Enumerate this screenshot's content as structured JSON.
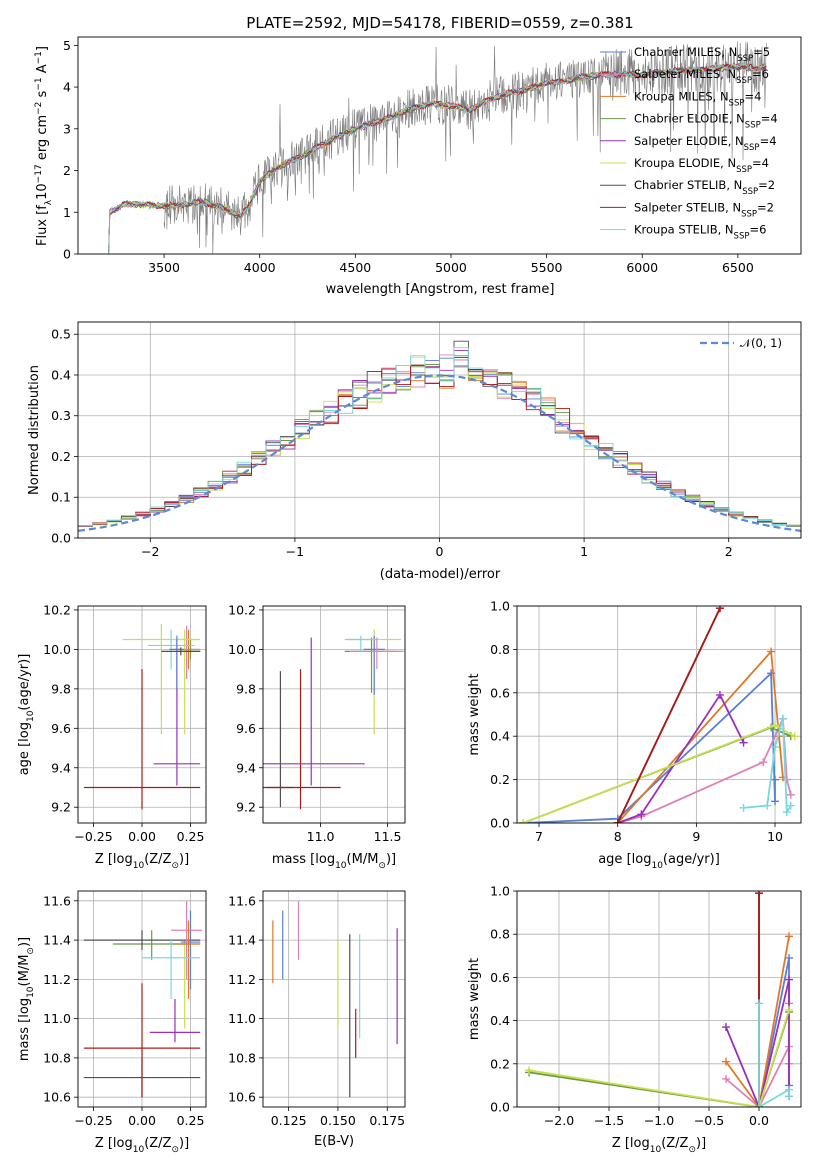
{
  "title": "PLATE=2592, MJD=54178, FIBERID=0559, z=0.381",
  "legend": [
    {
      "label": "Chabrier MILES, N",
      "sub": "SSP",
      "suffix": "=5",
      "color": "#5a7fd8"
    },
    {
      "label": "Salpeter MILES, N",
      "sub": "SSP",
      "suffix": "=6",
      "color": "#e080b8"
    },
    {
      "label": "Kroupa MILES, N",
      "sub": "SSP",
      "suffix": "=4",
      "color": "#e07828"
    },
    {
      "label": "Chabrier ELODIE, N",
      "sub": "SSP",
      "suffix": "=4",
      "color": "#6a9a4a"
    },
    {
      "label": "Salpeter ELODIE, N",
      "sub": "SSP",
      "suffix": "=4",
      "color": "#9a30b8"
    },
    {
      "label": "Kroupa ELODIE, N",
      "sub": "SSP",
      "suffix": "=4",
      "color": "#c8e050"
    },
    {
      "label": "Chabrier STELIB, N",
      "sub": "SSP",
      "suffix": "=2",
      "color": "#505050"
    },
    {
      "label": "Salpeter STELIB, N",
      "sub": "SSP",
      "suffix": "=2",
      "color": "#b01818"
    },
    {
      "label": "Kroupa STELIB, N",
      "sub": "SSP",
      "suffix": "=6",
      "color": "#78d8e0"
    }
  ],
  "hist_legend": "𝒩(0, 1)",
  "chart_data": [
    {
      "type": "line",
      "panel": "spectrum",
      "xlabel": "wavelength [Angstrom, rest frame]",
      "ylabel": "Flux [f",
      "ylabel_sub": "λ",
      "ylabel_rest": "10",
      "ylabel_exp1": "−17",
      "ylabel_mid": " erg cm",
      "ylabel_exp2": "−2",
      "ylabel_mid2": " s",
      "ylabel_exp3": "−1",
      "ylabel_mid3": " A",
      "ylabel_exp4": "−1",
      "ylabel_end": "]",
      "xlim": [
        3050,
        6830
      ],
      "ylim": [
        0,
        5.2
      ],
      "xticks": [
        "3500",
        "4000",
        "4500",
        "5000",
        "5500",
        "6000",
        "6500"
      ],
      "xtick_values": [
        3500,
        4000,
        4500,
        5000,
        5500,
        6000,
        6500
      ],
      "yticks": [
        "0",
        "1",
        "2",
        "3",
        "4",
        "5"
      ],
      "ytick_values": [
        0,
        1,
        2,
        3,
        4,
        5
      ],
      "continuum": [
        [
          3210,
          0
        ],
        [
          3215,
          1.0
        ],
        [
          3300,
          1.2
        ],
        [
          3400,
          1.18
        ],
        [
          3500,
          1.15
        ],
        [
          3600,
          1.18
        ],
        [
          3700,
          1.25
        ],
        [
          3800,
          1.12
        ],
        [
          3900,
          0.9
        ],
        [
          3950,
          1.2
        ],
        [
          4000,
          1.75
        ],
        [
          4100,
          2.1
        ],
        [
          4200,
          2.3
        ],
        [
          4300,
          2.55
        ],
        [
          4400,
          2.8
        ],
        [
          4500,
          3.0
        ],
        [
          4600,
          3.15
        ],
        [
          4700,
          3.3
        ],
        [
          4800,
          3.5
        ],
        [
          4900,
          3.6
        ],
        [
          5000,
          3.55
        ],
        [
          5100,
          3.45
        ],
        [
          5200,
          3.7
        ],
        [
          5300,
          3.85
        ],
        [
          5400,
          3.95
        ],
        [
          5500,
          4.1
        ],
        [
          5600,
          4.15
        ],
        [
          5700,
          4.25
        ],
        [
          5800,
          4.3
        ],
        [
          5900,
          4.3
        ],
        [
          6000,
          4.3
        ],
        [
          6100,
          4.35
        ],
        [
          6200,
          4.4
        ],
        [
          6300,
          4.4
        ],
        [
          6400,
          4.45
        ],
        [
          6500,
          4.5
        ],
        [
          6600,
          4.45
        ],
        [
          6650,
          4.5
        ]
      ]
    },
    {
      "type": "bar",
      "panel": "residual-histogram",
      "xlabel": "(data-model)/error",
      "ylabel": "Normed distribution",
      "xlim": [
        -2.5,
        2.5
      ],
      "ylim": [
        0,
        0.53
      ],
      "xticks": [
        "−2",
        "−1",
        "0",
        "1",
        "2"
      ],
      "xtick_values": [
        -2,
        -1,
        0,
        1,
        2
      ],
      "yticks": [
        "0.0",
        "0.1",
        "0.2",
        "0.3",
        "0.4",
        "0.5"
      ],
      "ytick_values": [
        0,
        0.1,
        0.2,
        0.3,
        0.4,
        0.5
      ],
      "bin_width": 0.1,
      "bin_start": -2.5,
      "reference_curve": "standard normal"
    },
    {
      "type": "scatter",
      "panel": "age-vs-Z",
      "xlabel": "Z [log",
      "xlabel_sub": "10",
      "xlabel_rest": "(Z/Z",
      "xlabel_sub2": "⊙",
      "xlabel_end": ")]",
      "ylabel": "age  [log",
      "ylabel_sub": "10",
      "ylabel_rest": "(age/yr)]",
      "xlim": [
        -0.33,
        0.33
      ],
      "ylim": [
        9.12,
        10.22
      ],
      "xticks": [
        "−0.25",
        "0.00",
        "0.25"
      ],
      "xtick_values": [
        -0.25,
        0,
        0.25
      ],
      "yticks": [
        "9.2",
        "9.4",
        "9.6",
        "9.8",
        "10.0",
        "10.2"
      ],
      "ytick_values": [
        9.2,
        9.4,
        9.6,
        9.8,
        10.0,
        10.2
      ],
      "points": [
        {
          "x": 0.18,
          "y": 9.42,
          "xerr": 0.12,
          "ylo": 9.31,
          "yhi": 10.05,
          "series": 4
        },
        {
          "x": 0.0,
          "y": 9.3,
          "xerr": 0.3,
          "ylo": 9.19,
          "yhi": 9.9,
          "series": 7
        },
        {
          "x": 0.23,
          "y": 10.0,
          "xerr": 0.07,
          "ylo": 9.85,
          "yhi": 10.12,
          "series": 1
        },
        {
          "x": 0.24,
          "y": 9.99,
          "xerr": 0.06,
          "ylo": 9.9,
          "yhi": 10.1,
          "series": 2
        },
        {
          "x": 0.25,
          "y": 9.99,
          "xerr": 0.05,
          "ylo": 9.95,
          "yhi": 10.05,
          "series": 3
        },
        {
          "x": 0.1,
          "y": 10.05,
          "xerr": 0.2,
          "ylo": 9.57,
          "yhi": 10.13,
          "series": 5
        },
        {
          "x": 0.22,
          "y": 10.05,
          "xerr": 0.05,
          "ylo": 9.57,
          "yhi": 10.1,
          "series": 5
        },
        {
          "x": 0.15,
          "y": 10.02,
          "xerr": 0.12,
          "ylo": 9.9,
          "yhi": 10.1,
          "series": 8
        },
        {
          "x": 0.18,
          "y": 10.0,
          "xerr": 0.04,
          "ylo": 9.8,
          "yhi": 10.07,
          "series": 0
        },
        {
          "x": 0.2,
          "y": 9.99,
          "xerr": 0.1,
          "ylo": 9.97,
          "yhi": 10.01,
          "series": 6
        }
      ]
    },
    {
      "type": "scatter",
      "panel": "age-vs-mass",
      "xlabel": "mass [log",
      "xlabel_sub": "10",
      "xlabel_rest": "(M/M",
      "xlabel_sub2": "⊙",
      "xlabel_end": ")]",
      "xlim": [
        10.57,
        11.63
      ],
      "ylim": [
        9.12,
        10.22
      ],
      "xticks": [
        "11.0",
        "11.5"
      ],
      "xtick_values": [
        11.0,
        11.5
      ],
      "yticks": [
        "9.2",
        "9.4",
        "9.6",
        "9.8",
        "10.0",
        "10.2"
      ],
      "ytick_values": [
        9.2,
        9.4,
        9.6,
        9.8,
        10.0,
        10.2
      ],
      "points": [
        {
          "x": 10.7,
          "y": 9.3,
          "xerr": 0.1,
          "ylo": 9.2,
          "yhi": 9.89,
          "series": 6
        },
        {
          "x": 10.85,
          "y": 9.3,
          "xerr": 0.3,
          "ylo": 9.19,
          "yhi": 9.9,
          "series": 7
        },
        {
          "x": 10.93,
          "y": 9.42,
          "xerr": 0.4,
          "ylo": 9.31,
          "yhi": 10.06,
          "series": 4
        },
        {
          "x": 11.4,
          "y": 10.05,
          "xerr": 0.2,
          "ylo": 9.57,
          "yhi": 10.1,
          "series": 5
        },
        {
          "x": 11.4,
          "y": 10.0,
          "xerr": 0.08,
          "ylo": 9.77,
          "yhi": 10.07,
          "series": 0
        },
        {
          "x": 11.38,
          "y": 9.99,
          "xerr": 0.2,
          "ylo": 9.78,
          "yhi": 10.06,
          "series": 3
        },
        {
          "x": 11.42,
          "y": 9.99,
          "xerr": 0.2,
          "ylo": 9.9,
          "yhi": 10.06,
          "series": 1
        },
        {
          "x": 11.3,
          "y": 10.05,
          "xerr": 0.12,
          "ylo": 9.99,
          "yhi": 10.07,
          "series": 8
        }
      ]
    },
    {
      "type": "line",
      "panel": "mass-weight-vs-age",
      "xlabel": "age  [log",
      "xlabel_sub": "10",
      "xlabel_rest": "(age/yr)]",
      "ylabel": "mass weight",
      "xlim": [
        6.72,
        10.33
      ],
      "ylim": [
        0,
        1.0
      ],
      "xticks": [
        "7",
        "8",
        "9",
        "10"
      ],
      "xtick_values": [
        7,
        8,
        9,
        10
      ],
      "yticks": [
        "0.0",
        "0.2",
        "0.4",
        "0.6",
        "0.8",
        "1.0"
      ],
      "ytick_values": [
        0,
        0.2,
        0.4,
        0.6,
        0.8,
        1.0
      ],
      "series": [
        {
          "name": "Chabrier MILES",
          "x": [
            6.8,
            8.0,
            9.95,
            10.0,
            10.0
          ],
          "y": [
            0.0,
            0.02,
            0.69,
            0.1,
            0.2
          ]
        },
        {
          "name": "Salpeter MILES",
          "x": [
            8.0,
            8.3,
            9.85,
            10.1,
            10.15,
            10.2
          ],
          "y": [
            0.0,
            0.03,
            0.28,
            0.48,
            0.2,
            0.13
          ]
        },
        {
          "name": "Kroupa MILES",
          "x": [
            8.0,
            9.95,
            10.05,
            10.1
          ],
          "y": [
            0.0,
            0.79,
            0.4,
            0.21
          ]
        },
        {
          "name": "Chabrier ELODIE",
          "x": [
            6.8,
            9.95,
            10.2
          ],
          "y": [
            0.0,
            0.44,
            0.4
          ]
        },
        {
          "name": "Salpeter ELODIE",
          "x": [
            8.0,
            8.3,
            9.3,
            9.6
          ],
          "y": [
            0.0,
            0.04,
            0.59,
            0.37
          ]
        },
        {
          "name": "Kroupa ELODIE",
          "x": [
            6.8,
            10.0,
            10.25
          ],
          "y": [
            0.0,
            0.45,
            0.4
          ]
        },
        {
          "name": "Chabrier STELIB",
          "x": [
            8.0,
            9.3
          ],
          "y": [
            0.0,
            0.99
          ]
        },
        {
          "name": "Salpeter STELIB",
          "x": [
            8.0,
            9.3
          ],
          "y": [
            0.0,
            0.99
          ]
        },
        {
          "name": "Kroupa STELIB",
          "x": [
            9.6,
            9.9,
            10.0,
            10.1,
            10.15,
            10.2
          ],
          "y": [
            0.07,
            0.08,
            0.35,
            0.48,
            0.05,
            0.08
          ]
        }
      ]
    },
    {
      "type": "scatter",
      "panel": "mass-vs-Z",
      "xlabel": "Z [log",
      "xlabel_sub": "10",
      "xlabel_rest": "(Z/Z",
      "xlabel_sub2": "⊙",
      "xlabel_end": ")]",
      "ylabel": "mass [log",
      "ylabel_sub": "10",
      "ylabel_rest": "(M/M",
      "ylabel_sub2": "⊙",
      "ylabel_end": ")]",
      "xlim": [
        -0.33,
        0.33
      ],
      "ylim": [
        10.55,
        11.65
      ],
      "xticks": [
        "−0.25",
        "0.00",
        "0.25"
      ],
      "xtick_values": [
        -0.25,
        0,
        0.25
      ],
      "yticks": [
        "10.6",
        "10.8",
        "11.0",
        "11.2",
        "11.4",
        "11.6"
      ],
      "ytick_values": [
        10.6,
        10.8,
        11.0,
        11.2,
        11.4,
        11.6
      ],
      "points": [
        {
          "x": 0.0,
          "y": 10.7,
          "xerr": 0.3,
          "ylo": 10.6,
          "yhi": 10.8,
          "series": 6
        },
        {
          "x": 0.0,
          "y": 10.85,
          "xerr": 0.3,
          "ylo": 10.6,
          "yhi": 11.18,
          "series": 7
        },
        {
          "x": 0.17,
          "y": 10.93,
          "xerr": 0.13,
          "ylo": 10.88,
          "yhi": 11.1,
          "series": 4
        },
        {
          "x": 0.22,
          "y": 11.38,
          "xerr": 0.08,
          "ylo": 10.95,
          "yhi": 11.4,
          "series": 5
        },
        {
          "x": 0.05,
          "y": 11.38,
          "xerr": 0.2,
          "ylo": 11.3,
          "yhi": 11.45,
          "series": 3
        },
        {
          "x": 0.0,
          "y": 11.4,
          "xerr": 0.3,
          "ylo": 11.35,
          "yhi": 11.45,
          "series": 6
        },
        {
          "x": 0.25,
          "y": 11.39,
          "xerr": 0.05,
          "ylo": 11.15,
          "yhi": 11.55,
          "series": 0
        },
        {
          "x": 0.23,
          "y": 11.45,
          "xerr": 0.08,
          "ylo": 11.2,
          "yhi": 11.6,
          "series": 1
        },
        {
          "x": 0.24,
          "y": 11.38,
          "xerr": 0.06,
          "ylo": 11.1,
          "yhi": 11.5,
          "series": 2
        },
        {
          "x": 0.15,
          "y": 11.31,
          "xerr": 0.15,
          "ylo": 11.1,
          "yhi": 11.4,
          "series": 8
        }
      ]
    },
    {
      "type": "scatter",
      "panel": "mass-vs-EBV",
      "xlabel": "E(B-V)",
      "xlim": [
        0.112,
        0.184
      ],
      "ylim": [
        10.55,
        11.65
      ],
      "xticks": [
        "0.125",
        "0.150",
        "0.175"
      ],
      "xtick_values": [
        0.125,
        0.15,
        0.175
      ],
      "yticks": [
        "10.6",
        "10.8",
        "11.0",
        "11.2",
        "11.4",
        "11.6"
      ],
      "ytick_values": [
        10.6,
        10.8,
        11.0,
        11.2,
        11.4,
        11.6
      ],
      "vlines": [
        {
          "x": 0.117,
          "ylo": 11.18,
          "yhi": 11.5,
          "series": 2
        },
        {
          "x": 0.122,
          "ylo": 11.2,
          "yhi": 11.55,
          "series": 0
        },
        {
          "x": 0.13,
          "ylo": 11.3,
          "yhi": 11.6,
          "series": 1
        },
        {
          "x": 0.15,
          "ylo": 10.95,
          "yhi": 11.4,
          "series": 5
        },
        {
          "x": 0.156,
          "ylo": 10.6,
          "yhi": 11.43,
          "series": 6
        },
        {
          "x": 0.159,
          "ylo": 10.8,
          "yhi": 11.05,
          "series": 7
        },
        {
          "x": 0.161,
          "ylo": 10.9,
          "yhi": 11.43,
          "series": 8
        },
        {
          "x": 0.18,
          "ylo": 10.87,
          "yhi": 11.46,
          "series": 4
        }
      ]
    },
    {
      "type": "line",
      "panel": "mass-weight-vs-Z",
      "xlabel": "Z [log",
      "xlabel_sub": "10",
      "xlabel_rest": "(Z/Z",
      "xlabel_sub2": "⊙",
      "xlabel_end": ")]",
      "ylabel": "mass weight",
      "xlim": [
        -2.42,
        0.42
      ],
      "ylim": [
        0,
        1.0
      ],
      "xticks": [
        "−2.0",
        "−1.5",
        "−1.0",
        "−0.5",
        "0.0"
      ],
      "xtick_values": [
        -2.0,
        -1.5,
        -1.0,
        -0.5,
        0.0
      ],
      "yticks": [
        "0.0",
        "0.2",
        "0.4",
        "0.6",
        "0.8",
        "1.0"
      ],
      "ytick_values": [
        0,
        0.2,
        0.4,
        0.6,
        0.8,
        1.0
      ],
      "series": [
        {
          "name": "Chabrier MILES",
          "x": [
            0.0,
            0.3,
            0.3,
            0.3
          ],
          "y": [
            0.0,
            0.69,
            0.1,
            0.2
          ]
        },
        {
          "name": "Salpeter MILES",
          "x": [
            -0.33,
            0.0,
            0.3,
            0.3,
            0.3
          ],
          "y": [
            0.13,
            0.0,
            0.28,
            0.48,
            0.2
          ]
        },
        {
          "name": "Kroupa MILES",
          "x": [
            -0.33,
            0.0,
            0.3
          ],
          "y": [
            0.21,
            0.0,
            0.79
          ]
        },
        {
          "name": "Chabrier ELODIE",
          "x": [
            -2.3,
            0.0,
            0.3
          ],
          "y": [
            0.16,
            0.0,
            0.44
          ]
        },
        {
          "name": "Salpeter ELODIE",
          "x": [
            -0.33,
            0.0,
            0.3,
            0.3
          ],
          "y": [
            0.37,
            0.0,
            0.59,
            0.05
          ]
        },
        {
          "name": "Kroupa ELODIE",
          "x": [
            -2.3,
            0.0,
            0.3
          ],
          "y": [
            0.17,
            0.0,
            0.45
          ]
        },
        {
          "name": "Chabrier STELIB",
          "x": [
            0.0,
            0.0
          ],
          "y": [
            0.0,
            0.99
          ]
        },
        {
          "name": "Salpeter STELIB",
          "x": [
            0.0,
            0.0
          ],
          "y": [
            0.0,
            0.99
          ]
        },
        {
          "name": "Kroupa STELIB",
          "x": [
            0.0,
            0.0,
            0.3,
            0.3
          ],
          "y": [
            0.48,
            0.0,
            0.08,
            0.05
          ]
        }
      ]
    }
  ]
}
